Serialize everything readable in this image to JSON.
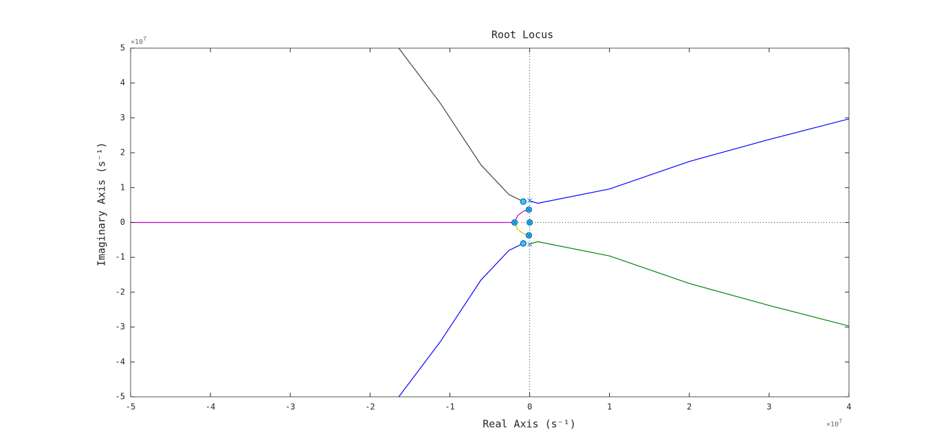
{
  "chart_data": {
    "type": "line",
    "title": "Root Locus",
    "x_label": "Real Axis (s⁻¹)",
    "y_label": "Imaginary Axis (s⁻¹)",
    "xscale": {
      "base": "×10",
      "exponent": "7"
    },
    "yscale": {
      "base": "×10",
      "exponent": "7"
    },
    "xlim": [
      -5,
      4
    ],
    "ylim": [
      -5,
      5
    ],
    "xticks": [
      -5,
      -4,
      -3,
      -2,
      -1,
      0,
      1,
      2,
      3,
      4
    ],
    "yticks": [
      -5,
      -4,
      -3,
      -2,
      -1,
      0,
      1,
      2,
      3,
      4,
      5
    ],
    "series": [
      {
        "color": "#404040",
        "x": [
          -1.64,
          -1.12,
          -0.61,
          -0.26,
          -0.08
        ],
        "y": [
          5,
          3.42,
          1.65,
          0.8,
          0.6
        ]
      },
      {
        "color": "#0000ff",
        "x": [
          0.0,
          0.1,
          1.0,
          2.0,
          3.0,
          4.0
        ],
        "y": [
          0.62,
          0.55,
          0.96,
          1.75,
          2.38,
          2.97
        ]
      },
      {
        "color": "#008000",
        "x": [
          0.0,
          0.1,
          1.0,
          2.0,
          3.0,
          4.0
        ],
        "y": [
          -0.62,
          -0.55,
          -0.96,
          -1.75,
          -2.38,
          -2.97
        ]
      },
      {
        "color": "#0000ff",
        "x": [
          -1.64,
          -1.12,
          -0.61,
          -0.26,
          -0.08
        ],
        "y": [
          -5,
          -3.42,
          -1.65,
          -0.8,
          -0.6
        ]
      },
      {
        "color": "#bf00bf",
        "x": [
          -5,
          -0.19,
          -0.15,
          -0.08,
          -0.01
        ],
        "y": [
          0,
          0,
          0.2,
          0.32,
          0.37
        ]
      },
      {
        "color": "#bfbf00",
        "x": [
          -0.19,
          -0.15,
          -0.08,
          -0.01
        ],
        "y": [
          0,
          -0.2,
          -0.32,
          -0.37
        ]
      }
    ],
    "zeros": {
      "color": "#0072bd",
      "x": [
        -0.08,
        -0.08,
        -0.01,
        -0.01,
        0,
        -0.19
      ],
      "y": [
        0.6,
        -0.6,
        0.37,
        -0.37,
        0,
        0
      ]
    },
    "poles": {
      "color": "#0072bd",
      "x": [
        0.0,
        0.0,
        -0.19,
        0,
        -0.01,
        -0.01
      ],
      "y": [
        0.63,
        -0.63,
        0,
        0,
        0.37,
        -0.37
      ]
    }
  }
}
